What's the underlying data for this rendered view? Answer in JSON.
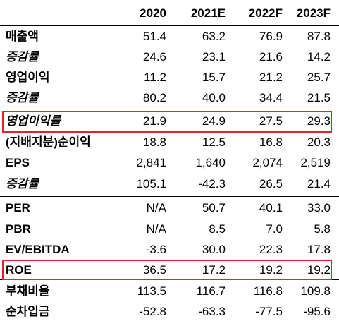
{
  "columns": [
    "2020",
    "2021E",
    "2022F",
    "2023F"
  ],
  "rows": [
    {
      "label": "매출액",
      "italic": false,
      "values": [
        "51.4",
        "63.2",
        "76.9",
        "87.8"
      ]
    },
    {
      "label": "증감률",
      "italic": true,
      "values": [
        "24.6",
        "23.1",
        "21.6",
        "14.2"
      ]
    },
    {
      "label": "영업이익",
      "italic": false,
      "values": [
        "11.2",
        "15.7",
        "21.2",
        "25.7"
      ]
    },
    {
      "label": "증감률",
      "italic": true,
      "values": [
        "80.2",
        "40.0",
        "34.4",
        "21.5"
      ]
    },
    {
      "label": "영업이익률",
      "italic": true,
      "values": [
        "21.9",
        "24.9",
        "27.5",
        "29.3"
      ]
    },
    {
      "label": "(지배지분)순이익",
      "italic": false,
      "values": [
        "18.8",
        "12.5",
        "16.8",
        "20.3"
      ]
    },
    {
      "label": "EPS",
      "italic": false,
      "values": [
        "2,841",
        "1,640",
        "2,074",
        "2,519"
      ]
    },
    {
      "label": "증감률",
      "italic": true,
      "values": [
        "105.1",
        "-42.3",
        "26.5",
        "21.4"
      ]
    },
    {
      "label": "PER",
      "italic": false,
      "values": [
        "N/A",
        "50.7",
        "40.1",
        "33.0"
      ]
    },
    {
      "label": "PBR",
      "italic": false,
      "values": [
        "N/A",
        "8.5",
        "7.0",
        "5.8"
      ]
    },
    {
      "label": "EV/EBITDA",
      "italic": false,
      "values": [
        "-3.6",
        "30.0",
        "22.3",
        "17.8"
      ]
    },
    {
      "label": "ROE",
      "italic": false,
      "values": [
        "36.5",
        "17.2",
        "19.2",
        "19.2"
      ]
    },
    {
      "label": "부채비율",
      "italic": false,
      "values": [
        "113.5",
        "116.7",
        "116.8",
        "109.8"
      ]
    },
    {
      "label": "순차입금",
      "italic": false,
      "values": [
        "-52.8",
        "-63.3",
        "-77.5",
        "-95.6"
      ]
    }
  ],
  "highlight_color": "#e0242f"
}
